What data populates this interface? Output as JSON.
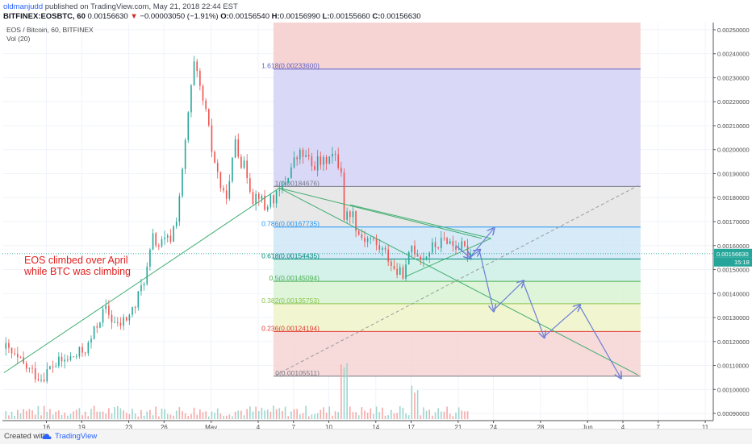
{
  "header": {
    "publisher": "oldmanjudd",
    "published_text": "published on TradingView.com, May 21, 2018 22:44 EST",
    "symbol_line": "BITFINEX:EOSBTC, 60",
    "price": "0.00156630",
    "change_arrow": "▼",
    "change": "−0.00003050 (−1.91%)",
    "open_label": "O:",
    "open": "0.00156540",
    "high_label": "H:",
    "high": "0.00156990",
    "low_label": "L:",
    "low": "0.00155660",
    "close_label": "C:",
    "close": "0.00156630"
  },
  "legend": {
    "title": "EOS / Bitcoin, 60, BITFINEX",
    "volume": "Vol (20)"
  },
  "annotation": {
    "line1": "EOS climbed over April",
    "line2": "while BTC was climbing",
    "color": "#e0201f"
  },
  "footer": {
    "created_with": "Created with",
    "brand": "TradingView"
  },
  "colors": {
    "up": "#26a69a",
    "down": "#ef5350",
    "trend_line": "#3fae6f",
    "projection": "#6b7fd6",
    "last_price_bg": "#26a69a"
  },
  "chart_data": {
    "type": "candlestick",
    "y_axis_ticks": [
      "0.00250000",
      "0.00240000",
      "0.00230000",
      "0.00220000",
      "0.00210000",
      "0.00200000",
      "0.00190000",
      "0.00180000",
      "0.00170000",
      "0.00160000",
      "0.00150000",
      "0.00140000",
      "0.00130000",
      "0.00120000",
      "0.00110000",
      "0.00100000",
      "0.00090000"
    ],
    "ylim": [
      0.00087,
      0.00253
    ],
    "x_ticks": [
      {
        "label": "16",
        "day": 16
      },
      {
        "label": "19",
        "day": 19
      },
      {
        "label": "23",
        "day": 23
      },
      {
        "label": "26",
        "day": 26
      },
      {
        "label": "May",
        "day": 30
      },
      {
        "label": "4",
        "day": 34
      },
      {
        "label": "7",
        "day": 37
      },
      {
        "label": "10",
        "day": 40
      },
      {
        "label": "14",
        "day": 44
      },
      {
        "label": "17",
        "day": 47
      },
      {
        "label": "21",
        "day": 51
      },
      {
        "label": "24",
        "day": 54
      },
      {
        "label": "28",
        "day": 58
      },
      {
        "label": "Jun",
        "day": 62
      },
      {
        "label": "4",
        "day": 65
      },
      {
        "label": "7",
        "day": 68
      },
      {
        "label": "11",
        "day": 72
      }
    ],
    "last_price": "0.00156630",
    "countdown": "15:18",
    "price_path": [
      [
        12.5,
        0.00117
      ],
      [
        13.5,
        0.00112
      ],
      [
        14.5,
        0.00108
      ],
      [
        15.5,
        0.00105
      ],
      [
        16.5,
        0.0011
      ],
      [
        17.5,
        0.00112
      ],
      [
        18.5,
        0.00114
      ],
      [
        19.5,
        0.00118
      ],
      [
        20.5,
        0.0013
      ],
      [
        21,
        0.00133
      ],
      [
        22,
        0.00126
      ],
      [
        23,
        0.00131
      ],
      [
        23.5,
        0.00135
      ],
      [
        24.5,
        0.0015
      ],
      [
        25,
        0.00163
      ],
      [
        25.5,
        0.0016
      ],
      [
        26.5,
        0.00163
      ],
      [
        27,
        0.00172
      ],
      [
        27.5,
        0.0019
      ],
      [
        28,
        0.00215
      ],
      [
        28.5,
        0.00235
      ],
      [
        29,
        0.00225
      ],
      [
        29.5,
        0.00215
      ],
      [
        30,
        0.002
      ],
      [
        30.5,
        0.0019
      ],
      [
        31,
        0.0018
      ],
      [
        31.5,
        0.00185
      ],
      [
        32,
        0.00205
      ],
      [
        32.5,
        0.00195
      ],
      [
        33,
        0.0019
      ],
      [
        33.5,
        0.0018
      ],
      [
        34,
        0.00182
      ],
      [
        34.5,
        0.00175
      ],
      [
        35,
        0.0018
      ],
      [
        35.5,
        0.0018
      ],
      [
        36,
        0.00184
      ],
      [
        36.5,
        0.0019
      ],
      [
        37,
        0.00195
      ],
      [
        37.5,
        0.00198
      ],
      [
        38,
        0.00197
      ],
      [
        38.5,
        0.00193
      ],
      [
        39,
        0.00195
      ],
      [
        39.5,
        0.00194
      ],
      [
        40,
        0.00199
      ],
      [
        40.5,
        0.00196
      ],
      [
        41,
        0.00192
      ],
      [
        41.3,
        0.00168
      ],
      [
        41.6,
        0.00175
      ],
      [
        42,
        0.00173
      ],
      [
        42.5,
        0.00165
      ],
      [
        43,
        0.00163
      ],
      [
        43.5,
        0.00163
      ],
      [
        44,
        0.0016
      ],
      [
        44.5,
        0.00158
      ],
      [
        45,
        0.00155
      ],
      [
        45.5,
        0.0015
      ],
      [
        46,
        0.00148
      ],
      [
        46.5,
        0.0015
      ],
      [
        47,
        0.0016
      ],
      [
        47.5,
        0.00157
      ],
      [
        48,
        0.00155
      ],
      [
        48.5,
        0.00158
      ],
      [
        49,
        0.0016
      ],
      [
        49.5,
        0.00161
      ],
      [
        50,
        0.00163
      ],
      [
        50.5,
        0.0016
      ],
      [
        51,
        0.0016
      ],
      [
        51.5,
        0.00158
      ],
      [
        52,
        0.00157
      ]
    ],
    "fibonacci": {
      "levels": [
        {
          "ratio": "1.618",
          "price": "0.00233600",
          "value": 0.002336,
          "color": "#5b5fc7"
        },
        {
          "ratio": "1",
          "price": "0.00184676",
          "value": 0.00184676,
          "color": "#787b86"
        },
        {
          "ratio": "0.786",
          "price": "0.00167735",
          "value": 0.00167735,
          "color": "#2196f3"
        },
        {
          "ratio": "0.618",
          "price": "0.00154435",
          "value": 0.00154435,
          "color": "#00897b"
        },
        {
          "ratio": "0.5",
          "price": "0.00145094",
          "value": 0.00145094,
          "color": "#4caf50"
        },
        {
          "ratio": "0.382",
          "price": "0.00135753",
          "value": 0.00135753,
          "color": "#8bc34a"
        },
        {
          "ratio": "0.236",
          "price": "0.00124194",
          "value": 0.00124194,
          "color": "#e53935"
        },
        {
          "ratio": "0",
          "price": "0.00105511",
          "value": 0.00105511,
          "color": "#787b86"
        }
      ],
      "bands": [
        {
          "from": 0.00253,
          "to": 0.002336,
          "fill": "#f4cccc"
        },
        {
          "from": 0.002336,
          "to": 0.00184676,
          "fill": "#d2d2f6"
        },
        {
          "from": 0.00184676,
          "to": 0.00167735,
          "fill": "#e4e4e4"
        },
        {
          "from": 0.00167735,
          "to": 0.00154435,
          "fill": "#cfe6f6"
        },
        {
          "from": 0.00154435,
          "to": 0.00145094,
          "fill": "#cdf0e6"
        },
        {
          "from": 0.00145094,
          "to": 0.00135753,
          "fill": "#d8f3d4"
        },
        {
          "from": 0.00135753,
          "to": 0.00124194,
          "fill": "#eef5c8"
        },
        {
          "from": 0.00124194,
          "to": 0.00105511,
          "fill": "#f6d3d3"
        }
      ],
      "day_start": 35.3,
      "day_end": 66.5
    },
    "trend_lines": [
      {
        "from": [
          12.4,
          0.00107
        ],
        "to": [
          35.8,
          0.00184
        ],
        "style": "solid",
        "color": "#3fae6f"
      },
      {
        "from": [
          35.8,
          0.00184
        ],
        "to": [
          53.0,
          0.00163
        ],
        "style": "solid",
        "color": "#3fae6f"
      },
      {
        "from": [
          35.8,
          0.00184
        ],
        "to": [
          66.3,
          0.00106
        ],
        "style": "solid",
        "color": "#3fae6f"
      },
      {
        "from": [
          41.8,
          0.00177
        ],
        "to": [
          53.8,
          0.00163
        ],
        "style": "solid",
        "color": "#3fae6f"
      },
      {
        "from": [
          46.5,
          0.00147
        ],
        "to": [
          53.8,
          0.00163
        ],
        "style": "solid",
        "color": "#3fae6f"
      },
      {
        "from": [
          35.5,
          0.00106
        ],
        "to": [
          66.3,
          0.00185
        ],
        "style": "dashed",
        "color": "#9a9a9a"
      }
    ],
    "projection_path": [
      [
        50.8,
        0.0016
      ],
      [
        52.0,
        0.00155
      ],
      [
        52.8,
        0.00158
      ],
      [
        54.0,
        0.00133
      ],
      [
        56.5,
        0.00145
      ],
      [
        58.3,
        0.00122
      ],
      [
        61.3,
        0.00135
      ],
      [
        64.8,
        0.00105
      ]
    ],
    "alt_projection": [
      [
        52.0,
        0.00155
      ],
      [
        54.0,
        0.00167
      ]
    ]
  }
}
